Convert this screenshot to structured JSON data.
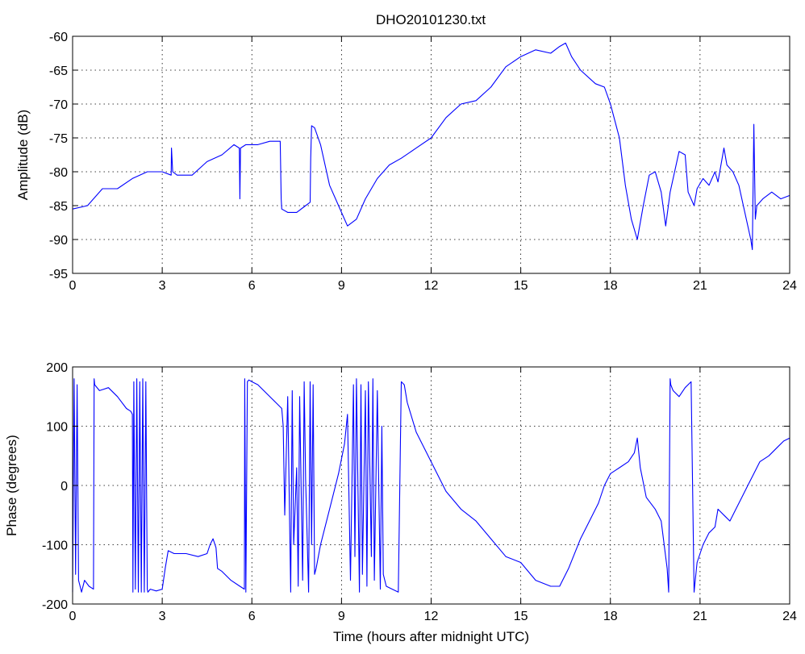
{
  "figure": {
    "title": "DHO20101230.txt",
    "line_color": "#0000ff"
  },
  "chart_data": [
    {
      "id": "amplitude",
      "type": "line",
      "title": "DHO20101230.txt",
      "xlabel": "",
      "ylabel": "Amplitude (dB)",
      "xlim": [
        0,
        24
      ],
      "ylim": [
        -95,
        -60
      ],
      "xticks": [
        0,
        3,
        6,
        9,
        12,
        15,
        18,
        21,
        24
      ],
      "yticks": [
        -95,
        -90,
        -85,
        -80,
        -75,
        -70,
        -65,
        -60
      ],
      "grid": true,
      "color": "#0000ff",
      "x": [
        0,
        0.5,
        1.0,
        1.5,
        2.0,
        2.5,
        3.0,
        3.3,
        3.31,
        3.35,
        3.5,
        4.0,
        4.5,
        5.0,
        5.4,
        5.58,
        5.6,
        5.62,
        5.8,
        6.2,
        6.6,
        6.95,
        6.98,
        7.0,
        7.2,
        7.5,
        7.8,
        7.95,
        7.97,
        8.0,
        8.1,
        8.3,
        8.6,
        8.9,
        9.2,
        9.5,
        9.8,
        10.2,
        10.6,
        11.0,
        11.5,
        12.0,
        12.5,
        13.0,
        13.5,
        14.0,
        14.5,
        15.0,
        15.5,
        16.0,
        16.3,
        16.5,
        16.7,
        17.0,
        17.5,
        17.8,
        18.0,
        18.3,
        18.5,
        18.7,
        18.9,
        19.1,
        19.3,
        19.5,
        19.7,
        19.85,
        20.0,
        20.3,
        20.5,
        20.6,
        20.8,
        20.9,
        21.1,
        21.3,
        21.5,
        21.6,
        21.8,
        21.9,
        22.1,
        22.3,
        22.5,
        22.7,
        22.75,
        22.8,
        22.85,
        22.9,
        23.1,
        23.4,
        23.7,
        24.0
      ],
      "y": [
        -85.5,
        -85,
        -82.5,
        -82.5,
        -81,
        -80,
        -80,
        -80.5,
        -76.5,
        -80,
        -80.5,
        -80.5,
        -78.5,
        -77.5,
        -76,
        -76.5,
        -84,
        -76.5,
        -76,
        -76,
        -75.5,
        -75.5,
        -84,
        -85.5,
        -86,
        -86,
        -85,
        -84.5,
        -78,
        -73.2,
        -73.5,
        -76,
        -82,
        -85,
        -88,
        -87,
        -84,
        -81,
        -79,
        -78,
        -76.5,
        -75,
        -72,
        -70,
        -69.5,
        -67.5,
        -64.5,
        -63,
        -62,
        -62.5,
        -61.5,
        -61,
        -63,
        -65,
        -67,
        -67.5,
        -70,
        -75,
        -82,
        -87,
        -90,
        -85,
        -80.5,
        -80,
        -83,
        -88,
        -83,
        -77,
        -77.5,
        -83,
        -85,
        -82.5,
        -81,
        -82,
        -80,
        -81.5,
        -76.5,
        -79,
        -80,
        -82,
        -86,
        -90,
        -91.5,
        -73,
        -87,
        -85,
        -84,
        -83,
        -84,
        -83.5
      ]
    },
    {
      "id": "phase",
      "type": "line",
      "title": "",
      "xlabel": "Time (hours after midnight UTC)",
      "ylabel": "Phase (degrees)",
      "xlim": [
        0,
        24
      ],
      "ylim": [
        -200,
        200
      ],
      "xticks": [
        0,
        3,
        6,
        9,
        12,
        15,
        18,
        21,
        24
      ],
      "yticks": [
        -200,
        -100,
        0,
        100,
        200
      ],
      "grid": true,
      "color": "#0000ff",
      "x": [
        0,
        0.05,
        0.1,
        0.15,
        0.2,
        0.25,
        0.3,
        0.4,
        0.55,
        0.7,
        0.72,
        0.74,
        0.9,
        1.2,
        1.5,
        1.8,
        1.95,
        2.0,
        2.02,
        2.05,
        2.1,
        2.15,
        2.2,
        2.25,
        2.3,
        2.35,
        2.4,
        2.45,
        2.5,
        2.52,
        2.6,
        2.8,
        3.0,
        3.1,
        3.2,
        3.4,
        3.8,
        4.2,
        4.5,
        4.6,
        4.7,
        4.8,
        4.85,
        5.0,
        5.3,
        5.6,
        5.75,
        5.76,
        5.8,
        5.85,
        5.9,
        6.0,
        6.2,
        6.5,
        6.8,
        7.0,
        7.05,
        7.1,
        7.2,
        7.3,
        7.35,
        7.4,
        7.5,
        7.55,
        7.6,
        7.7,
        7.75,
        7.8,
        7.9,
        7.95,
        8.0,
        8.05,
        8.1,
        8.15,
        8.3,
        8.6,
        8.9,
        9.1,
        9.2,
        9.3,
        9.4,
        9.45,
        9.5,
        9.6,
        9.65,
        9.7,
        9.8,
        9.85,
        9.9,
        10.0,
        10.05,
        10.1,
        10.2,
        10.3,
        10.35,
        10.4,
        10.5,
        10.7,
        10.9,
        11.0,
        11.1,
        11.2,
        11.5,
        12.0,
        12.5,
        13.0,
        13.5,
        14.0,
        14.5,
        15.0,
        15.5,
        16.0,
        16.3,
        16.6,
        17.0,
        17.3,
        17.6,
        17.8,
        18.0,
        18.3,
        18.6,
        18.8,
        18.9,
        19.0,
        19.2,
        19.5,
        19.7,
        19.8,
        19.9,
        19.95,
        20.0,
        20.02,
        20.1,
        20.3,
        20.5,
        20.7,
        20.8,
        20.82,
        20.9,
        21.1,
        21.3,
        21.5,
        21.6,
        21.8,
        22.0,
        22.2,
        22.4,
        22.6,
        22.8,
        23.0,
        23.3,
        23.6,
        23.8,
        24.0
      ],
      "y": [
        -180,
        180,
        -150,
        170,
        -160,
        -170,
        -180,
        -160,
        -170,
        -175,
        180,
        170,
        160,
        165,
        150,
        130,
        125,
        120,
        -180,
        175,
        -175,
        180,
        -180,
        175,
        -180,
        180,
        -180,
        175,
        -175,
        -180,
        -175,
        -178,
        -175,
        -140,
        -110,
        -115,
        -115,
        -120,
        -115,
        -100,
        -90,
        -105,
        -140,
        -145,
        -160,
        -170,
        -175,
        180,
        -180,
        175,
        178,
        175,
        170,
        155,
        140,
        130,
        100,
        -50,
        150,
        -180,
        160,
        -100,
        30,
        -170,
        150,
        -160,
        175,
        10,
        -180,
        175,
        -100,
        170,
        -150,
        -140,
        -100,
        -40,
        20,
        70,
        120,
        -160,
        170,
        -120,
        180,
        -180,
        170,
        -150,
        160,
        -170,
        175,
        -120,
        180,
        -160,
        160,
        -175,
        100,
        -150,
        -170,
        -175,
        -180,
        175,
        170,
        140,
        90,
        40,
        -10,
        -40,
        -60,
        -90,
        -120,
        -130,
        -160,
        -170,
        -170,
        -140,
        -90,
        -60,
        -30,
        0,
        20,
        30,
        40,
        55,
        80,
        30,
        -20,
        -40,
        -60,
        -100,
        -140,
        -180,
        180,
        170,
        160,
        150,
        165,
        175,
        -180,
        -170,
        -130,
        -100,
        -80,
        -70,
        -40,
        -50,
        -60,
        -40,
        -20,
        0,
        20,
        40,
        50,
        65,
        75,
        80
      ]
    }
  ]
}
